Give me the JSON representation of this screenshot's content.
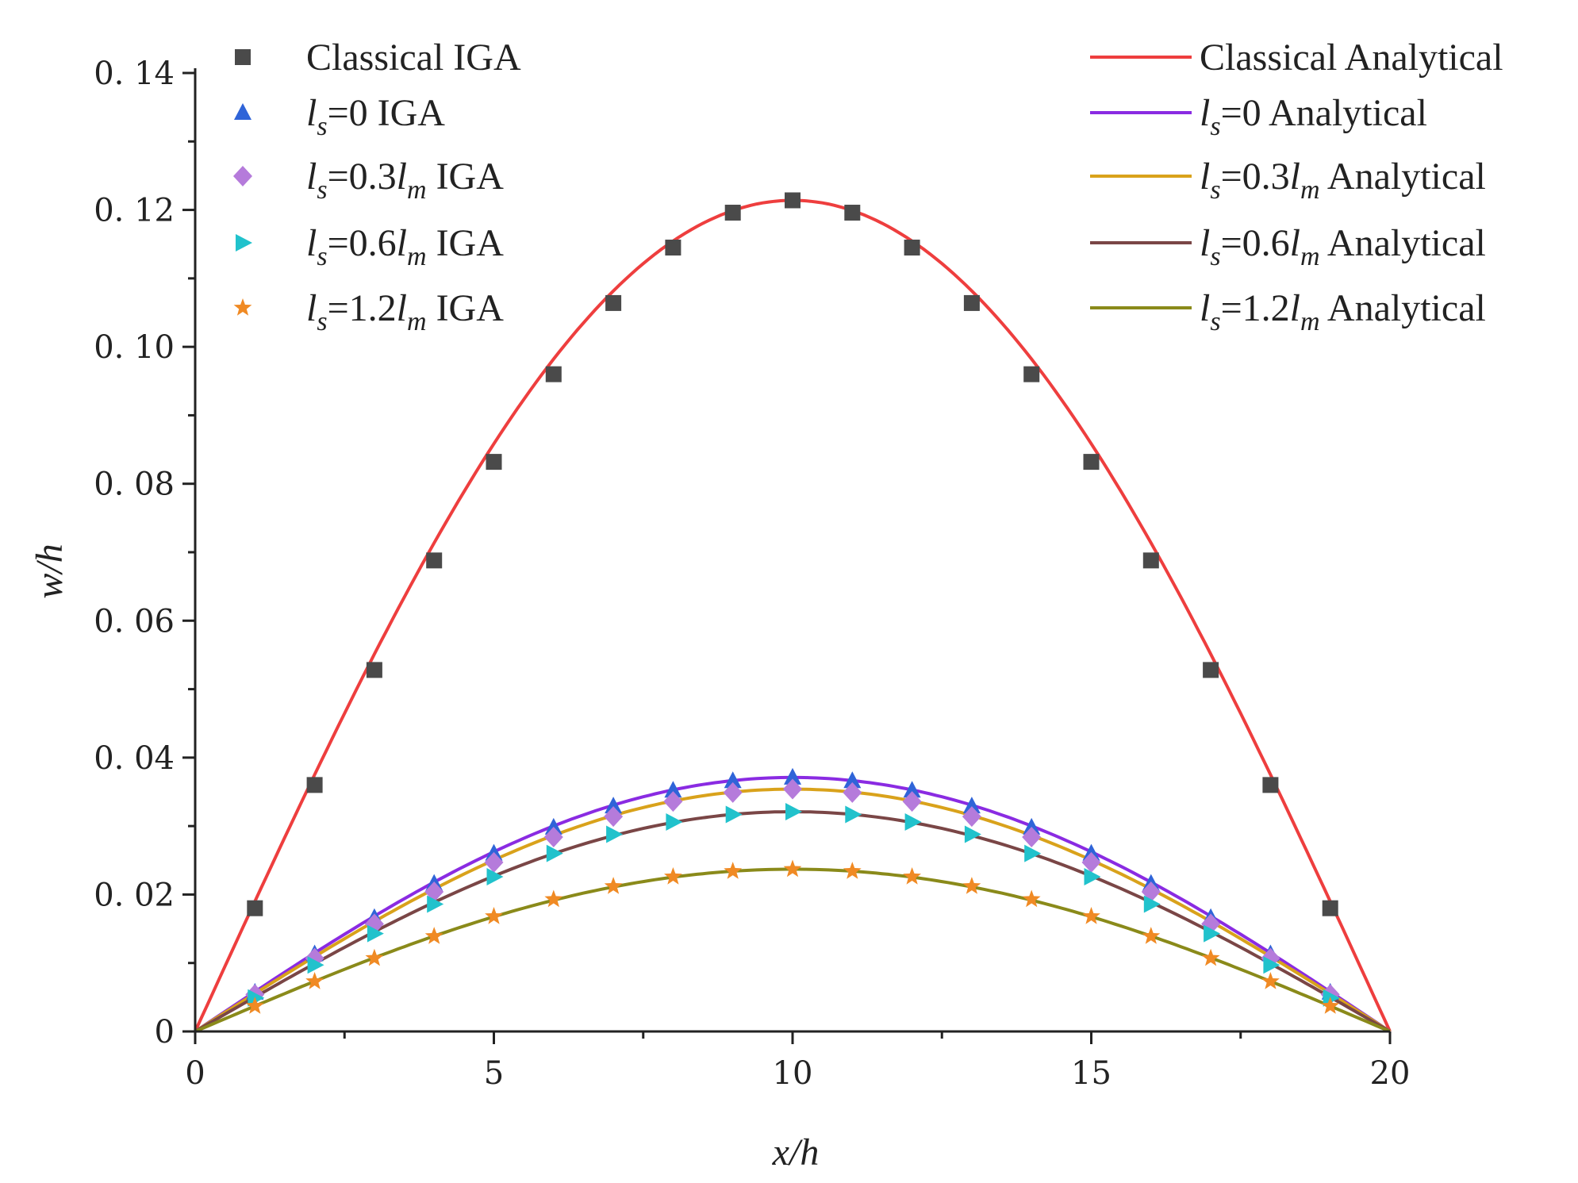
{
  "chart_data": {
    "type": "line",
    "title": "",
    "xlabel": "x/h",
    "ylabel": "w/h",
    "xlim": [
      0,
      20
    ],
    "ylim": [
      0,
      0.14
    ],
    "x_ticks": [
      0,
      5,
      10,
      15,
      20
    ],
    "x_tick_labels": [
      "0",
      "5",
      "10",
      "15",
      "20"
    ],
    "y_ticks": [
      0,
      0.02,
      0.04,
      0.06,
      0.08,
      0.1,
      0.12,
      0.14
    ],
    "y_tick_labels": [
      "0",
      "0. 02",
      "0. 04",
      "0. 06",
      "0. 08",
      "0. 10",
      "0. 12",
      "0. 14"
    ],
    "grid": false,
    "curve_shape": "w(x) = peak * sin(pi * x / 20)",
    "series": [
      {
        "name": "Classical IGA",
        "kind": "scatter",
        "marker": "square",
        "color": "#4a4a4a",
        "x": [
          1,
          2,
          3,
          4,
          5,
          6,
          7,
          8,
          9,
          10,
          11,
          12,
          13,
          14,
          15,
          16,
          17,
          18,
          19
        ],
        "values": [
          0.018,
          0.036,
          0.0528,
          0.0688,
          0.0832,
          0.096,
          0.1064,
          0.1145,
          0.1196,
          0.1214,
          0.1196,
          0.1145,
          0.1064,
          0.096,
          0.0832,
          0.0688,
          0.0528,
          0.036,
          0.018
        ]
      },
      {
        "name": "ls=0 IGA",
        "kind": "scatter",
        "marker": "triangle-up",
        "color": "#2f64d8",
        "x": [
          1,
          2,
          3,
          4,
          5,
          6,
          7,
          8,
          9,
          10,
          11,
          12,
          13,
          14,
          15,
          16,
          17,
          18,
          19
        ],
        "values": [
          0.0057,
          0.0113,
          0.0166,
          0.0216,
          0.026,
          0.0298,
          0.0329,
          0.0352,
          0.0366,
          0.0371,
          0.0366,
          0.0352,
          0.0329,
          0.0298,
          0.026,
          0.0216,
          0.0166,
          0.0113,
          0.0057
        ]
      },
      {
        "name": "ls=0.3lm IGA",
        "kind": "scatter",
        "marker": "diamond",
        "color": "#b57bdb",
        "x": [
          1,
          2,
          3,
          4,
          5,
          6,
          7,
          8,
          9,
          10,
          11,
          12,
          13,
          14,
          15,
          16,
          17,
          18,
          19
        ],
        "values": [
          0.0054,
          0.0107,
          0.0157,
          0.0204,
          0.0247,
          0.0284,
          0.0314,
          0.0336,
          0.0349,
          0.0354,
          0.0349,
          0.0336,
          0.0314,
          0.0284,
          0.0247,
          0.0204,
          0.0157,
          0.0107,
          0.0054
        ]
      },
      {
        "name": "ls=0.6lm IGA",
        "kind": "scatter",
        "marker": "triangle-right",
        "color": "#21c2cc",
        "x": [
          1,
          2,
          3,
          4,
          5,
          6,
          7,
          8,
          9,
          10,
          11,
          12,
          13,
          14,
          15,
          16,
          17,
          18,
          19
        ],
        "values": [
          0.0049,
          0.0097,
          0.0143,
          0.0186,
          0.0226,
          0.026,
          0.0288,
          0.0306,
          0.0317,
          0.0321,
          0.0317,
          0.0306,
          0.0288,
          0.026,
          0.0226,
          0.0186,
          0.0143,
          0.0097,
          0.0049
        ]
      },
      {
        "name": "ls=1.2lm IGA",
        "kind": "scatter",
        "marker": "star",
        "color": "#f08a24",
        "x": [
          1,
          2,
          3,
          4,
          5,
          6,
          7,
          8,
          9,
          10,
          11,
          12,
          13,
          14,
          15,
          16,
          17,
          18,
          19
        ],
        "values": [
          0.0037,
          0.0073,
          0.0107,
          0.0139,
          0.0168,
          0.0193,
          0.0212,
          0.0226,
          0.0234,
          0.0237,
          0.0234,
          0.0226,
          0.0212,
          0.0193,
          0.0168,
          0.0139,
          0.0107,
          0.0073,
          0.0037
        ]
      },
      {
        "name": "Classical Analytical",
        "kind": "line",
        "color": "#ee3e3e",
        "peak": 0.1214
      },
      {
        "name": "ls=0 Analytical",
        "kind": "line",
        "color": "#8a2be2",
        "peak": 0.0371
      },
      {
        "name": "ls=0.3lm Analytical",
        "kind": "line",
        "color": "#d9a21b",
        "peak": 0.0354
      },
      {
        "name": "ls=0.6lm Analytical",
        "kind": "line",
        "color": "#7a4646",
        "peak": 0.0321
      },
      {
        "name": "ls=1.2lm Analytical",
        "kind": "line",
        "color": "#8a8a1a",
        "peak": 0.0237
      }
    ],
    "legend": {
      "placement": "top (two columns)",
      "markers": [
        {
          "series": 0,
          "parts": [
            {
              "t": "Classical IGA"
            }
          ]
        },
        {
          "series": 1,
          "parts": [
            {
              "t": "l",
              "i": true
            },
            {
              "t": "s",
              "sub": true
            },
            {
              "t": "=0 IGA"
            }
          ]
        },
        {
          "series": 2,
          "parts": [
            {
              "t": "l",
              "i": true
            },
            {
              "t": "s",
              "sub": true
            },
            {
              "t": "=0.3"
            },
            {
              "t": "l",
              "i": true
            },
            {
              "t": "m",
              "sub": true
            },
            {
              "t": " IGA"
            }
          ]
        },
        {
          "series": 3,
          "parts": [
            {
              "t": "l",
              "i": true
            },
            {
              "t": "s",
              "sub": true
            },
            {
              "t": "=0.6"
            },
            {
              "t": "l",
              "i": true
            },
            {
              "t": "m",
              "sub": true
            },
            {
              "t": " IGA"
            }
          ]
        },
        {
          "series": 4,
          "parts": [
            {
              "t": "l",
              "i": true
            },
            {
              "t": "s",
              "sub": true
            },
            {
              "t": "=1.2"
            },
            {
              "t": "l",
              "i": true
            },
            {
              "t": "m",
              "sub": true
            },
            {
              "t": " IGA"
            }
          ]
        }
      ],
      "lines": [
        {
          "series": 5,
          "parts": [
            {
              "t": "Classical Analytical"
            }
          ]
        },
        {
          "series": 6,
          "parts": [
            {
              "t": "l",
              "i": true
            },
            {
              "t": "s",
              "sub": true
            },
            {
              "t": "=0 Analytical"
            }
          ]
        },
        {
          "series": 7,
          "parts": [
            {
              "t": "l",
              "i": true
            },
            {
              "t": "s",
              "sub": true
            },
            {
              "t": "=0.3"
            },
            {
              "t": "l",
              "i": true
            },
            {
              "t": "m",
              "sub": true
            },
            {
              "t": " Analytical"
            }
          ]
        },
        {
          "series": 8,
          "parts": [
            {
              "t": "l",
              "i": true
            },
            {
              "t": "s",
              "sub": true
            },
            {
              "t": "=0.6"
            },
            {
              "t": "l",
              "i": true
            },
            {
              "t": "m",
              "sub": true
            },
            {
              "t": " Analytical"
            }
          ]
        },
        {
          "series": 9,
          "parts": [
            {
              "t": "l",
              "i": true
            },
            {
              "t": "s",
              "sub": true
            },
            {
              "t": "=1.2"
            },
            {
              "t": "l",
              "i": true
            },
            {
              "t": "m",
              "sub": true
            },
            {
              "t": " Analytical"
            }
          ]
        }
      ]
    }
  }
}
